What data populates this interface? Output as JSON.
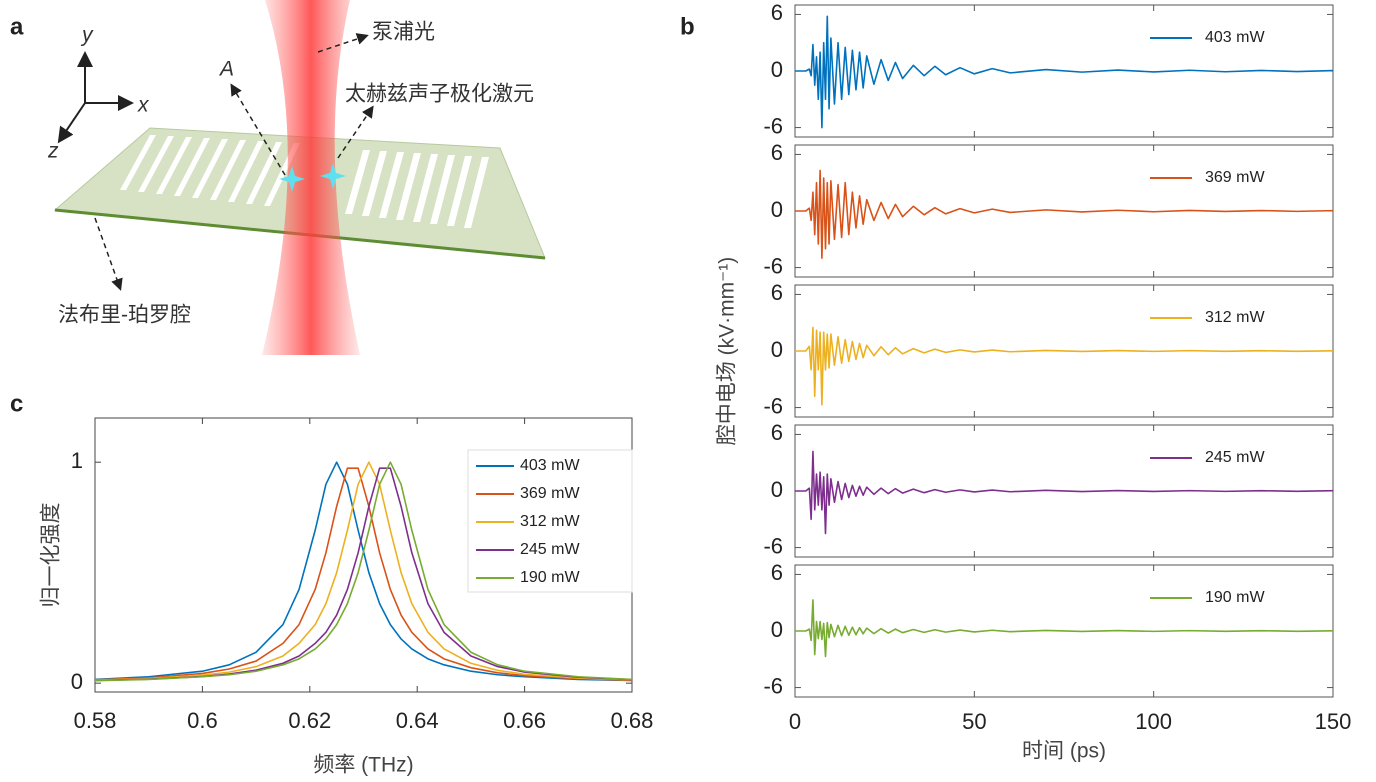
{
  "diagram": {
    "panel_label": "a",
    "axis_y": "y",
    "axis_x": "x",
    "axis_z": "z",
    "amplitude": "A",
    "pump": "泵浦光",
    "polariton": "太赫兹声子极化激元",
    "cavity": "法布里-珀罗腔"
  },
  "chart_data": [
    {
      "type": "line",
      "panel_label": "c",
      "x_label": "频率 (THz)",
      "y_label": "归一化强度",
      "xlim": [
        0.58,
        0.68
      ],
      "xticks": [
        0.58,
        0.6,
        0.62,
        0.64,
        0.66,
        0.68
      ],
      "ylim": [
        -0.04,
        1.2
      ],
      "yticks": [
        0,
        1
      ],
      "grid": false,
      "legend": "upper right",
      "x": [
        0.58,
        0.59,
        0.6,
        0.605,
        0.61,
        0.615,
        0.618,
        0.621,
        0.623,
        0.625,
        0.627,
        0.629,
        0.631,
        0.633,
        0.635,
        0.637,
        0.639,
        0.642,
        0.645,
        0.65,
        0.655,
        0.66,
        0.67,
        0.68
      ],
      "series": [
        {
          "name": "403 mW",
          "color": "#0072bd",
          "values": [
            0.017,
            0.029,
            0.054,
            0.083,
            0.14,
            0.265,
            0.424,
            0.692,
            0.9,
            1,
            0.9,
            0.692,
            0.5,
            0.36,
            0.265,
            0.2,
            0.155,
            0.11,
            0.083,
            0.054,
            0.038,
            0.029,
            0.017,
            0.012
          ]
        },
        {
          "name": "369 mW",
          "color": "#d95319",
          "values": [
            0.015,
            0.024,
            0.044,
            0.064,
            0.1,
            0.18,
            0.265,
            0.424,
            0.59,
            0.8,
            0.973,
            0.973,
            0.8,
            0.59,
            0.424,
            0.308,
            0.23,
            0.155,
            0.11,
            0.07,
            0.047,
            0.034,
            0.02,
            0.013
          ]
        },
        {
          "name": "312 mW",
          "color": "#edb120",
          "values": [
            0.014,
            0.021,
            0.036,
            0.05,
            0.075,
            0.123,
            0.18,
            0.265,
            0.36,
            0.5,
            0.692,
            0.9,
            1,
            0.9,
            0.692,
            0.5,
            0.36,
            0.23,
            0.155,
            0.09,
            0.058,
            0.04,
            0.023,
            0.015
          ]
        },
        {
          "name": "245 mW",
          "color": "#7e2f8e",
          "values": [
            0.012,
            0.018,
            0.03,
            0.041,
            0.059,
            0.09,
            0.123,
            0.18,
            0.23,
            0.308,
            0.424,
            0.59,
            0.8,
            0.973,
            0.973,
            0.8,
            0.59,
            0.36,
            0.23,
            0.123,
            0.075,
            0.05,
            0.027,
            0.016
          ]
        },
        {
          "name": "190 mW",
          "color": "#77ac30",
          "values": [
            0.011,
            0.017,
            0.029,
            0.038,
            0.054,
            0.083,
            0.11,
            0.155,
            0.2,
            0.265,
            0.36,
            0.5,
            0.692,
            0.9,
            1,
            0.9,
            0.692,
            0.424,
            0.265,
            0.14,
            0.083,
            0.054,
            0.029,
            0.017
          ]
        }
      ]
    },
    {
      "type": "small_multiples",
      "panel_label": "b",
      "x_label": "时间 (ps)",
      "y_label": "腔中电场 (kV·mm⁻¹)",
      "xlim": [
        0,
        150
      ],
      "xticks": [
        0,
        50,
        100,
        150
      ],
      "ylim": [
        -7,
        7
      ],
      "yticks": [
        -6,
        0,
        6
      ],
      "grid": false,
      "legend": "upper right",
      "x": [
        0,
        3,
        4,
        4.5,
        5,
        5.5,
        6,
        6.5,
        7,
        7.5,
        8,
        8.5,
        9,
        9.5,
        10,
        11,
        12,
        13,
        14,
        15,
        16,
        17,
        18,
        19,
        20,
        22,
        24,
        26,
        28,
        30,
        33,
        36,
        39,
        42,
        46,
        50,
        55,
        60,
        70,
        80,
        90,
        100,
        110,
        120,
        130,
        140,
        150
      ],
      "series": [
        {
          "name": "403 mW",
          "color": "#0072bd",
          "values": [
            0,
            0,
            0.2,
            -0.5,
            2.8,
            -1.5,
            1.5,
            -3,
            2,
            -6,
            3,
            -3,
            5.8,
            -4,
            3.5,
            -3.5,
            3,
            -3,
            2.5,
            -2.5,
            2.2,
            -2,
            2,
            -1.8,
            1.6,
            -1.4,
            1.2,
            -1,
            0.9,
            -0.8,
            0.6,
            -0.5,
            0.5,
            -0.4,
            0.35,
            -0.3,
            0.25,
            -0.2,
            0.15,
            -0.12,
            0.1,
            -0.1,
            0.08,
            -0.08,
            0.06,
            -0.06,
            0.05
          ]
        },
        {
          "name": "369 mW",
          "color": "#d95319",
          "values": [
            0,
            0,
            0.3,
            -1,
            2,
            -2.5,
            3,
            -3.5,
            4.3,
            -5,
            3.5,
            -4,
            3,
            -3.5,
            3.2,
            -3,
            2.8,
            -2.8,
            3,
            -2.5,
            2,
            -1.8,
            1.6,
            -1.4,
            1.2,
            -1,
            0.9,
            -0.8,
            0.7,
            -0.6,
            0.5,
            -0.4,
            0.35,
            -0.3,
            0.25,
            -0.2,
            0.2,
            -0.15,
            0.12,
            -0.1,
            0.08,
            -0.08,
            0.06,
            -0.05,
            0.05,
            -0.04,
            0.04
          ]
        },
        {
          "name": "312 mW",
          "color": "#edb120",
          "values": [
            0,
            0,
            0.5,
            -2,
            2.5,
            -4.8,
            2.2,
            -2,
            2,
            -5.7,
            2,
            -2,
            1.8,
            -1.8,
            1.8,
            -1.5,
            1.5,
            -1.3,
            1.2,
            -1.1,
            1,
            -0.9,
            0.8,
            -0.7,
            0.6,
            -0.5,
            0.45,
            -0.4,
            0.35,
            -0.3,
            0.25,
            -0.2,
            0.2,
            -0.15,
            0.12,
            -0.1,
            0.1,
            -0.08,
            0.06,
            -0.05,
            0.05,
            -0.04,
            0.04,
            -0.03,
            0.03,
            -0.03,
            0.02
          ]
        },
        {
          "name": "245 mW",
          "color": "#7e2f8e",
          "values": [
            0,
            0,
            0.3,
            -3,
            4.2,
            -2,
            1.8,
            -1.5,
            2,
            -2,
            1.5,
            -4.5,
            1.8,
            -1.5,
            1.3,
            -1.2,
            1,
            -0.9,
            0.8,
            -0.7,
            0.6,
            -0.55,
            0.5,
            -0.45,
            0.4,
            -0.35,
            0.3,
            -0.28,
            0.25,
            -0.22,
            0.2,
            -0.18,
            0.15,
            -0.13,
            0.12,
            -0.1,
            0.1,
            -0.08,
            0.07,
            -0.06,
            0.05,
            -0.05,
            0.04,
            -0.04,
            0.03,
            -0.03,
            0.03
          ]
        },
        {
          "name": "190 mW",
          "color": "#77ac30",
          "values": [
            0,
            0,
            0.2,
            -1,
            3.3,
            -2.5,
            1,
            -0.8,
            1,
            -0.9,
            0.8,
            -2.7,
            0.9,
            -0.7,
            0.7,
            -0.6,
            0.6,
            -0.5,
            0.5,
            -0.45,
            0.4,
            -0.4,
            0.35,
            -0.3,
            0.3,
            -0.28,
            0.25,
            -0.22,
            0.2,
            -0.18,
            0.16,
            -0.15,
            0.13,
            -0.12,
            0.1,
            -0.1,
            0.08,
            -0.07,
            0.06,
            -0.05,
            0.05,
            -0.04,
            0.04,
            -0.03,
            0.03,
            -0.03,
            0.02
          ]
        }
      ]
    }
  ]
}
